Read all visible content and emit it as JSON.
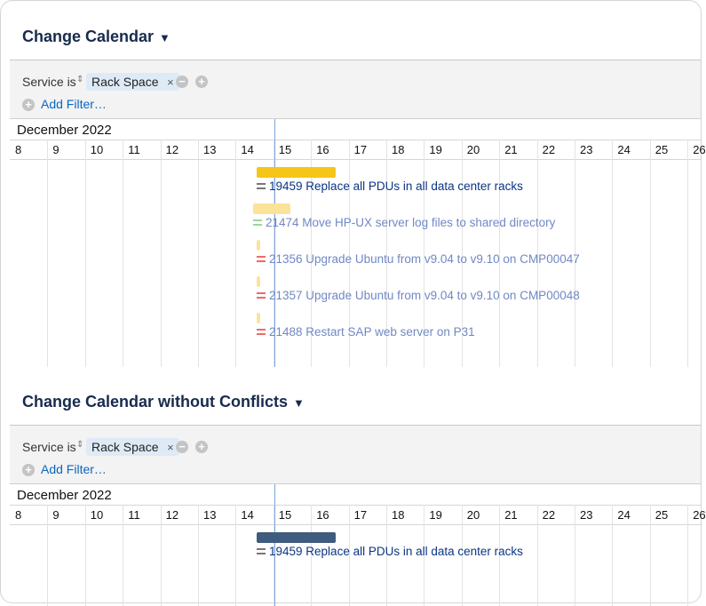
{
  "panels": [
    {
      "title": "Change Calendar",
      "filter": {
        "field": "Service is",
        "value": "Rack Space"
      },
      "add_filter": "Add Filter…",
      "month": "December 2022",
      "days": [
        8,
        9,
        10,
        11,
        12,
        13,
        14,
        15,
        16,
        17,
        18,
        19,
        20,
        21,
        22,
        23,
        24,
        25,
        26
      ],
      "items": [
        {
          "label": "19459 Replace all PDUs in all data center racks"
        },
        {
          "label": "21474 Move HP-UX server log files to shared directory"
        },
        {
          "label": "21356 Upgrade Ubuntu from v9.04 to v9.10 on CMP00047"
        },
        {
          "label": "21357 Upgrade Ubuntu from v9.04 to v9.10 on CMP00048"
        },
        {
          "label": "21488 Restart SAP web server on P31"
        }
      ]
    },
    {
      "title": "Change Calendar without Conflicts",
      "filter": {
        "field": "Service is",
        "value": "Rack Space"
      },
      "add_filter": "Add Filter…",
      "month": "December 2022",
      "days": [
        8,
        9,
        10,
        11,
        12,
        13,
        14,
        15,
        16,
        17,
        18,
        19,
        20,
        21,
        22,
        23,
        24,
        25,
        26
      ],
      "items": [
        {
          "label": "19459 Replace all PDUs in all data center racks"
        }
      ]
    }
  ]
}
